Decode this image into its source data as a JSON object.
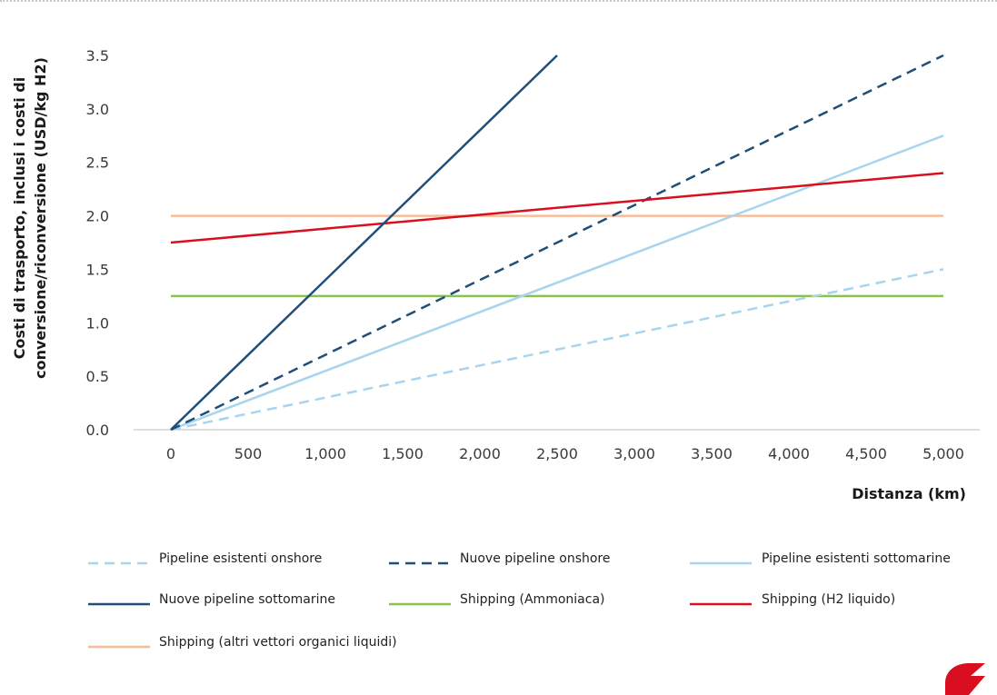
{
  "chart_data": {
    "type": "line",
    "title": "",
    "xlabel": "Distanza (km)",
    "ylabel_lines": [
      "Costi di trasporto, inclusi i costi di",
      "conversione/riconversione (USD/kg H2)"
    ],
    "xlim": [
      0,
      5000
    ],
    "ylim": [
      0,
      3.5
    ],
    "x_ticks": [
      0,
      500,
      1000,
      1500,
      2000,
      2500,
      3000,
      3500,
      4000,
      4500,
      5000
    ],
    "x_tick_labels": [
      "0",
      "500",
      "1,000",
      "1,500",
      "2,000",
      "2,500",
      "3,000",
      "3,500",
      "4,000",
      "4,500",
      "5,000"
    ],
    "y_ticks": [
      0,
      0.5,
      1,
      1.5,
      2,
      2.5,
      3,
      3.5
    ],
    "y_tick_labels": [
      "0.0",
      "0.5",
      "1.0",
      "1.5",
      "2.0",
      "2.5",
      "3.0",
      "3.5"
    ],
    "grid": false,
    "legend_position": "bottom",
    "series": [
      {
        "name": "Pipeline esistenti onshore",
        "color": "#a8d4ee",
        "dash": true,
        "x": [
          0,
          5000
        ],
        "y": [
          0,
          1.5
        ]
      },
      {
        "name": "Nuove pipeline onshore",
        "color": "#1e4e79",
        "dash": true,
        "x": [
          0,
          5000
        ],
        "y": [
          0,
          3.5
        ]
      },
      {
        "name": "Pipeline esistenti sottomarine",
        "color": "#a8d4ee",
        "dash": false,
        "x": [
          0,
          5000
        ],
        "y": [
          0,
          2.75
        ]
      },
      {
        "name": "Nuove pipeline sottomarine",
        "color": "#1e4e79",
        "dash": false,
        "x": [
          0,
          2500
        ],
        "y": [
          0,
          3.5
        ]
      },
      {
        "name": "Shipping (Ammoniaca)",
        "color": "#8cc152",
        "dash": false,
        "x": [
          0,
          5000
        ],
        "y": [
          1.25,
          1.25
        ]
      },
      {
        "name": "Shipping (H2 liquido)",
        "color": "#d90f1f",
        "dash": false,
        "x": [
          0,
          5000
        ],
        "y": [
          1.75,
          2.4
        ]
      },
      {
        "name": "Shipping (altri vettori organici liquidi)",
        "color": "#f8bd98",
        "dash": false,
        "x": [
          0,
          5000
        ],
        "y": [
          2.0,
          2.0
        ]
      }
    ]
  }
}
